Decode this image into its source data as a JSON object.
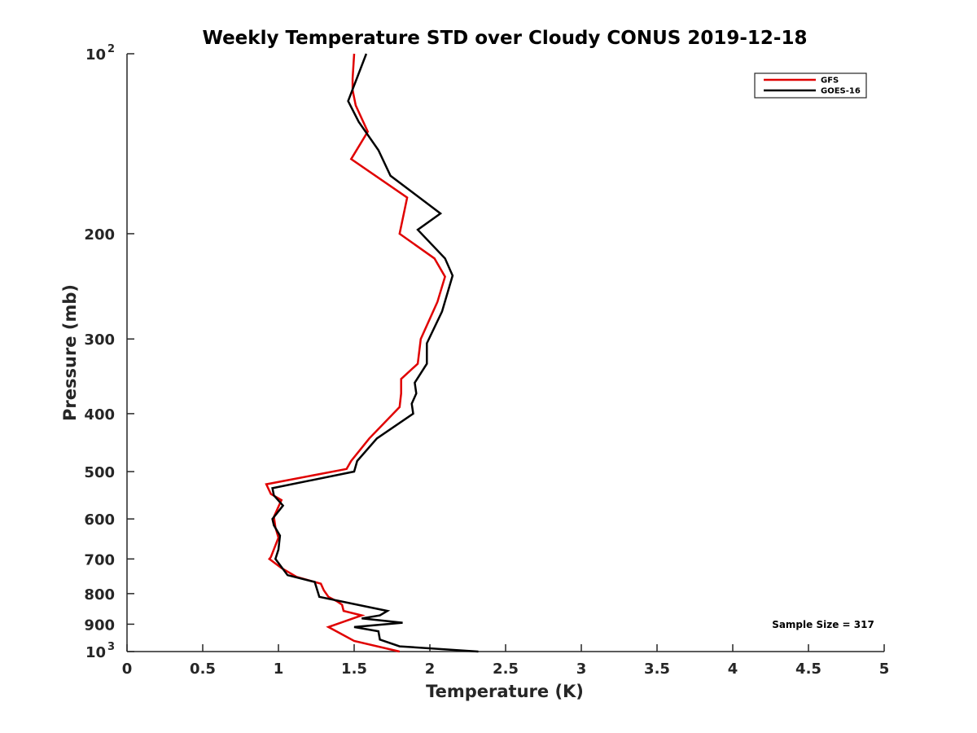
{
  "chart_data": {
    "type": "line",
    "title": "Weekly Temperature STD over Cloudy CONUS 2019-12-18",
    "xlabel": "Temperature (K)",
    "ylabel": "Pressure (mb)",
    "xlim": [
      0,
      5
    ],
    "ylim": [
      100,
      1000
    ],
    "yscale": "log",
    "y_reversed": true,
    "grid": false,
    "legend_position": "top-right",
    "x_ticks": [
      "0",
      "0.5",
      "1",
      "1.5",
      "2",
      "2.5",
      "3",
      "3.5",
      "4",
      "4.5",
      "5"
    ],
    "y_ticks": [
      {
        "value": 100,
        "base": "10",
        "exp": "2"
      },
      {
        "value": 200,
        "label": "200"
      },
      {
        "value": 300,
        "label": "300"
      },
      {
        "value": 400,
        "label": "400"
      },
      {
        "value": 500,
        "label": "500"
      },
      {
        "value": 600,
        "label": "600"
      },
      {
        "value": 700,
        "label": "700"
      },
      {
        "value": 800,
        "label": "800"
      },
      {
        "value": 900,
        "label": "900"
      },
      {
        "value": 1000,
        "base": "10",
        "exp": "3"
      }
    ],
    "annotation": "Sample Size = 317",
    "series": [
      {
        "name": "GFS",
        "color": "#e00000",
        "points": [
          [
            1.5,
            100
          ],
          [
            1.49,
            110
          ],
          [
            1.49,
            115
          ],
          [
            1.51,
            122
          ],
          [
            1.59,
            135
          ],
          [
            1.48,
            150
          ],
          [
            1.85,
            174
          ],
          [
            1.8,
            200
          ],
          [
            2.03,
            220
          ],
          [
            2.1,
            236
          ],
          [
            2.05,
            260
          ],
          [
            1.94,
            300
          ],
          [
            1.92,
            330
          ],
          [
            1.81,
            350
          ],
          [
            1.81,
            370
          ],
          [
            1.8,
            390
          ],
          [
            1.6,
            440
          ],
          [
            1.48,
            480
          ],
          [
            1.45,
            495
          ],
          [
            0.92,
            525
          ],
          [
            0.95,
            545
          ],
          [
            1.02,
            558
          ],
          [
            0.97,
            595
          ],
          [
            0.98,
            620
          ],
          [
            1.0,
            645
          ],
          [
            0.95,
            695
          ],
          [
            0.94,
            700
          ],
          [
            1.02,
            725
          ],
          [
            1.12,
            750
          ],
          [
            1.28,
            770
          ],
          [
            1.3,
            790
          ],
          [
            1.33,
            810
          ],
          [
            1.39,
            825
          ],
          [
            1.42,
            835
          ],
          [
            1.43,
            855
          ],
          [
            1.55,
            870
          ],
          [
            1.45,
            888
          ],
          [
            1.33,
            910
          ],
          [
            1.4,
            930
          ],
          [
            1.5,
            960
          ],
          [
            1.8,
            1000
          ]
        ]
      },
      {
        "name": "GOES-16",
        "color": "#000000",
        "points": [
          [
            1.58,
            100
          ],
          [
            1.46,
            120
          ],
          [
            1.53,
            130
          ],
          [
            1.66,
            145
          ],
          [
            1.74,
            160
          ],
          [
            2.07,
            185
          ],
          [
            1.92,
            197
          ],
          [
            2.1,
            220
          ],
          [
            2.15,
            235
          ],
          [
            2.08,
            270
          ],
          [
            1.98,
            305
          ],
          [
            1.98,
            330
          ],
          [
            1.9,
            355
          ],
          [
            1.91,
            370
          ],
          [
            1.88,
            385
          ],
          [
            1.89,
            400
          ],
          [
            1.65,
            440
          ],
          [
            1.52,
            480
          ],
          [
            1.5,
            500
          ],
          [
            0.96,
            533
          ],
          [
            0.97,
            548
          ],
          [
            1.03,
            570
          ],
          [
            0.96,
            600
          ],
          [
            0.97,
            615
          ],
          [
            1.01,
            640
          ],
          [
            1.0,
            675
          ],
          [
            0.98,
            700
          ],
          [
            1.06,
            745
          ],
          [
            1.24,
            765
          ],
          [
            1.27,
            810
          ],
          [
            1.57,
            840
          ],
          [
            1.72,
            855
          ],
          [
            1.67,
            870
          ],
          [
            1.55,
            880
          ],
          [
            1.82,
            895
          ],
          [
            1.5,
            910
          ],
          [
            1.66,
            925
          ],
          [
            1.67,
            955
          ],
          [
            1.8,
            980
          ],
          [
            2.32,
            1000
          ]
        ]
      }
    ]
  }
}
